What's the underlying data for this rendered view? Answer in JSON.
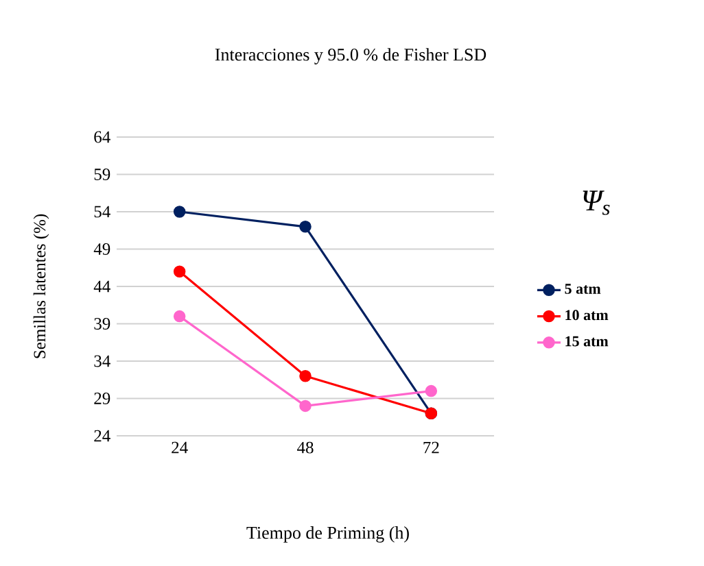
{
  "chart_data": {
    "type": "line",
    "title": "Interacciones y 95.0 % de Fisher LSD",
    "xlabel": "Tiempo de Priming (h)",
    "ylabel": "Semillas latentes (%)",
    "legend_title": "Ψ$_{s}$",
    "categories": [
      "24",
      "48",
      "72"
    ],
    "series": [
      {
        "name": "5 atm",
        "color": "#002060",
        "values": [
          54,
          52,
          27
        ]
      },
      {
        "name": "10 atm",
        "color": "#ff0000",
        "values": [
          46,
          32,
          27
        ]
      },
      {
        "name": "15 atm",
        "color": "#ff66cc",
        "values": [
          40,
          28,
          30
        ]
      }
    ],
    "ylim": [
      24,
      64
    ],
    "yticks": [
      24,
      29,
      34,
      39,
      44,
      49,
      54,
      59,
      64
    ],
    "grid": "y",
    "legend": "right",
    "marker": "circle",
    "line_style": "solid"
  }
}
